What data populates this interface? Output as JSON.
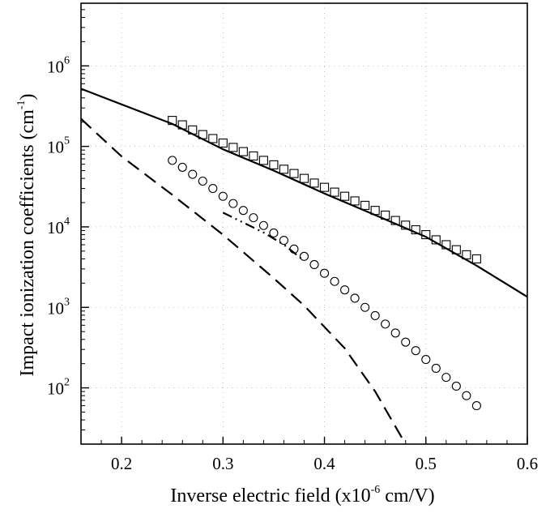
{
  "chart_data": {
    "type": "scatter",
    "xlabel": {
      "prefix": "Inverse electric field (x10",
      "superscript": "-6",
      "suffix": " cm/V)"
    },
    "ylabel": {
      "prefix": "Impact ionization coefficients (cm",
      "superscript": "-1",
      "suffix": ")"
    },
    "xlim": [
      0.16,
      0.6
    ],
    "ylim": [
      20,
      6000000
    ],
    "yscale": "log",
    "grid": "dotted",
    "x_ticks": [
      {
        "value": 0.2,
        "label": "0.2"
      },
      {
        "value": 0.3,
        "label": "0.3"
      },
      {
        "value": 0.4,
        "label": "0.4"
      },
      {
        "value": 0.5,
        "label": "0.5"
      },
      {
        "value": 0.6,
        "label": "0.6"
      }
    ],
    "y_ticks": [
      {
        "value": 100,
        "base": "10",
        "exp": "2"
      },
      {
        "value": 1000,
        "base": "10",
        "exp": "3"
      },
      {
        "value": 10000,
        "base": "10",
        "exp": "4"
      },
      {
        "value": 100000,
        "base": "10",
        "exp": "5"
      },
      {
        "value": 1000000,
        "base": "10",
        "exp": "6"
      }
    ],
    "series": [
      {
        "style": "solid-line",
        "x": [
          0.16,
          0.25,
          0.3,
          0.35,
          0.4,
          0.45,
          0.5,
          0.55,
          0.6
        ],
        "y": [
          520000,
          190000,
          92000,
          50000,
          26000,
          14000,
          7500,
          3300,
          1350
        ]
      },
      {
        "style": "dashed-line",
        "x": [
          0.16,
          0.2,
          0.25,
          0.3,
          0.35,
          0.38,
          0.42,
          0.45,
          0.48
        ],
        "y": [
          220000,
          75000,
          25000,
          8000,
          2300,
          1050,
          310,
          90,
          20
        ]
      },
      {
        "style": "dash-dot-line",
        "x": [
          0.3,
          0.34,
          0.36,
          0.38
        ],
        "y": [
          15000,
          8500,
          6000,
          3800
        ]
      },
      {
        "style": "square-markers",
        "x": [
          0.25,
          0.26,
          0.27,
          0.28,
          0.29,
          0.3,
          0.31,
          0.32,
          0.33,
          0.34,
          0.35,
          0.36,
          0.37,
          0.38,
          0.39,
          0.4,
          0.41,
          0.42,
          0.43,
          0.44,
          0.45,
          0.46,
          0.47,
          0.48,
          0.49,
          0.5,
          0.51,
          0.52,
          0.53,
          0.54,
          0.55
        ],
        "y": [
          210000,
          185000,
          160000,
          140000,
          125000,
          110000,
          97000,
          86000,
          76000,
          67000,
          59000,
          52000,
          46000,
          40000,
          35000,
          31000,
          27000,
          24000,
          21000,
          18500,
          16000,
          14000,
          12000,
          10500,
          9200,
          8000,
          6900,
          6000,
          5200,
          4500,
          4000
        ]
      },
      {
        "style": "circle-markers",
        "x": [
          0.25,
          0.26,
          0.27,
          0.28,
          0.29,
          0.3,
          0.31,
          0.32,
          0.33,
          0.34,
          0.35,
          0.36,
          0.37,
          0.38,
          0.39,
          0.4,
          0.41,
          0.42,
          0.43,
          0.44,
          0.45,
          0.46,
          0.47,
          0.48,
          0.49,
          0.5,
          0.51,
          0.52,
          0.53,
          0.54,
          0.55
        ],
        "y": [
          67000,
          55000,
          45000,
          37000,
          30000,
          24000,
          19500,
          16000,
          13000,
          10400,
          8400,
          6800,
          5300,
          4300,
          3400,
          2650,
          2100,
          1650,
          1300,
          1000,
          790,
          620,
          480,
          370,
          290,
          225,
          175,
          135,
          105,
          80,
          60
        ]
      }
    ]
  }
}
